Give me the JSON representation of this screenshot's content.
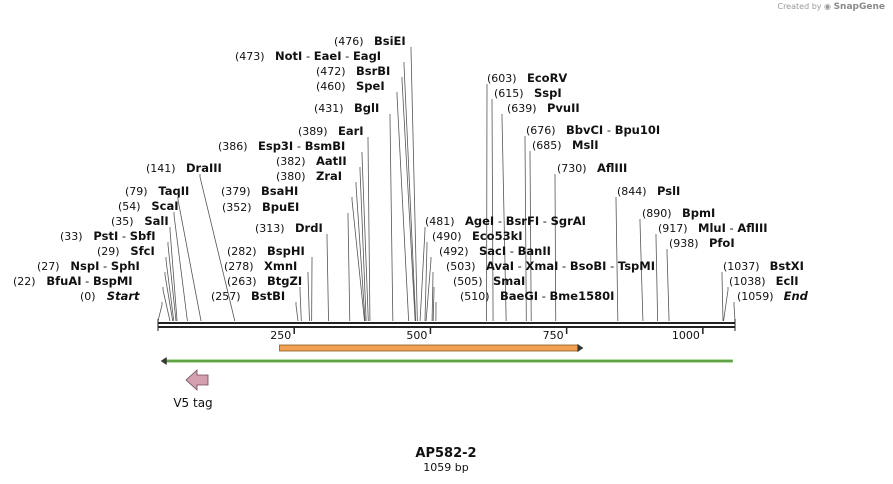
{
  "credit": {
    "prefix": "Created by",
    "brand": "SnapGene"
  },
  "map": {
    "name": "AP582-2",
    "length_label": "1059 bp",
    "length": 1059,
    "ticks": [
      250,
      500,
      750,
      1000
    ]
  },
  "features": [
    {
      "name": "",
      "type": "orange-bar",
      "start": 223,
      "end": 779,
      "color": "#f0a050"
    },
    {
      "name": "",
      "type": "green-line",
      "start": 5,
      "end": 1055,
      "color": "#6cc24a"
    },
    {
      "name": "V5 tag",
      "type": "arrow",
      "direction": "left",
      "start": 50,
      "end": 95,
      "color": "#d4a0b0"
    }
  ],
  "sites": [
    {
      "pos": "(0)",
      "name": "Start",
      "parts": [],
      "italic": true,
      "loc": 0
    },
    {
      "pos": "(22)",
      "name": "",
      "parts": [
        "BfuAI",
        "BspMI"
      ],
      "loc": 22
    },
    {
      "pos": "(27)",
      "name": "",
      "parts": [
        "NspI",
        "SphI"
      ],
      "loc": 27
    },
    {
      "pos": "(29)",
      "name": "SfcI",
      "parts": [],
      "loc": 29
    },
    {
      "pos": "(33)",
      "name": "",
      "parts": [
        "PstI",
        "SbfI"
      ],
      "loc": 33
    },
    {
      "pos": "(35)",
      "name": "SalI",
      "parts": [],
      "loc": 35
    },
    {
      "pos": "(54)",
      "name": "ScaI",
      "parts": [],
      "loc": 54
    },
    {
      "pos": "(79)",
      "name": "TaqII",
      "parts": [],
      "loc": 79
    },
    {
      "pos": "(141)",
      "name": "DraIII",
      "parts": [],
      "loc": 141
    },
    {
      "pos": "(257)",
      "name": "BstBI",
      "parts": [],
      "loc": 257
    },
    {
      "pos": "(263)",
      "name": "BtgZI",
      "parts": [],
      "loc": 263
    },
    {
      "pos": "(278)",
      "name": "XmnI",
      "parts": [],
      "loc": 278
    },
    {
      "pos": "(282)",
      "name": "BspHI",
      "parts": [],
      "loc": 282
    },
    {
      "pos": "(313)",
      "name": "DrdI",
      "parts": [],
      "loc": 313
    },
    {
      "pos": "(352)",
      "name": "BpuEI",
      "parts": [],
      "loc": 352
    },
    {
      "pos": "(379)",
      "name": "BsaHI",
      "parts": [],
      "loc": 379
    },
    {
      "pos": "(380)",
      "name": "ZraI",
      "parts": [],
      "loc": 380
    },
    {
      "pos": "(382)",
      "name": "AatII",
      "parts": [],
      "loc": 382
    },
    {
      "pos": "(386)",
      "name": "",
      "parts": [
        "Esp3I",
        "BsmBI"
      ],
      "loc": 386
    },
    {
      "pos": "(389)",
      "name": "EarI",
      "parts": [],
      "loc": 389
    },
    {
      "pos": "(431)",
      "name": "BglI",
      "parts": [],
      "loc": 431
    },
    {
      "pos": "(460)",
      "name": "SpeI",
      "parts": [],
      "loc": 460
    },
    {
      "pos": "(472)",
      "name": "BsrBI",
      "parts": [],
      "loc": 472
    },
    {
      "pos": "(473)",
      "name": "",
      "parts": [
        "NotI",
        "EaeI",
        "EagI"
      ],
      "loc": 473
    },
    {
      "pos": "(476)",
      "name": "BsiEI",
      "parts": [],
      "loc": 476
    },
    {
      "pos": "(481)",
      "name": "",
      "parts": [
        "AgeI",
        "BsrFI",
        "SgrAI"
      ],
      "loc": 481
    },
    {
      "pos": "(490)",
      "name": "Eco53kI",
      "parts": [],
      "loc": 490
    },
    {
      "pos": "(492)",
      "name": "",
      "parts": [
        "SacI",
        "BanII"
      ],
      "loc": 492
    },
    {
      "pos": "(503)",
      "name": "",
      "parts": [
        "AvaI",
        "XmaI",
        "BsoBI",
        "TspMI"
      ],
      "loc": 503
    },
    {
      "pos": "(505)",
      "name": "SmaI",
      "parts": [],
      "loc": 505
    },
    {
      "pos": "(510)",
      "name": "",
      "parts": [
        "BaeGI",
        "Bme1580I"
      ],
      "loc": 510
    },
    {
      "pos": "(603)",
      "name": "EcoRV",
      "parts": [],
      "loc": 603
    },
    {
      "pos": "(615)",
      "name": "SspI",
      "parts": [],
      "loc": 615
    },
    {
      "pos": "(639)",
      "name": "PvuII",
      "parts": [],
      "loc": 639
    },
    {
      "pos": "(676)",
      "name": "",
      "parts": [
        "BbvCI",
        "Bpu10I"
      ],
      "loc": 676
    },
    {
      "pos": "(685)",
      "name": "MslI",
      "parts": [],
      "loc": 685
    },
    {
      "pos": "(730)",
      "name": "AflIII",
      "parts": [],
      "loc": 730
    },
    {
      "pos": "(844)",
      "name": "PslI",
      "parts": [],
      "loc": 844
    },
    {
      "pos": "(890)",
      "name": "BpmI",
      "parts": [],
      "loc": 890
    },
    {
      "pos": "(917)",
      "name": "",
      "parts": [
        "MluI",
        "AflIII"
      ],
      "loc": 917
    },
    {
      "pos": "(938)",
      "name": "PfoI",
      "parts": [],
      "loc": 938
    },
    {
      "pos": "(1037)",
      "name": "BstXI",
      "parts": [],
      "loc": 1037
    },
    {
      "pos": "(1038)",
      "name": "EclI",
      "parts": [],
      "loc": 1038
    },
    {
      "pos": "(1059)",
      "name": "End",
      "parts": [],
      "italic": true,
      "loc": 1059
    }
  ]
}
